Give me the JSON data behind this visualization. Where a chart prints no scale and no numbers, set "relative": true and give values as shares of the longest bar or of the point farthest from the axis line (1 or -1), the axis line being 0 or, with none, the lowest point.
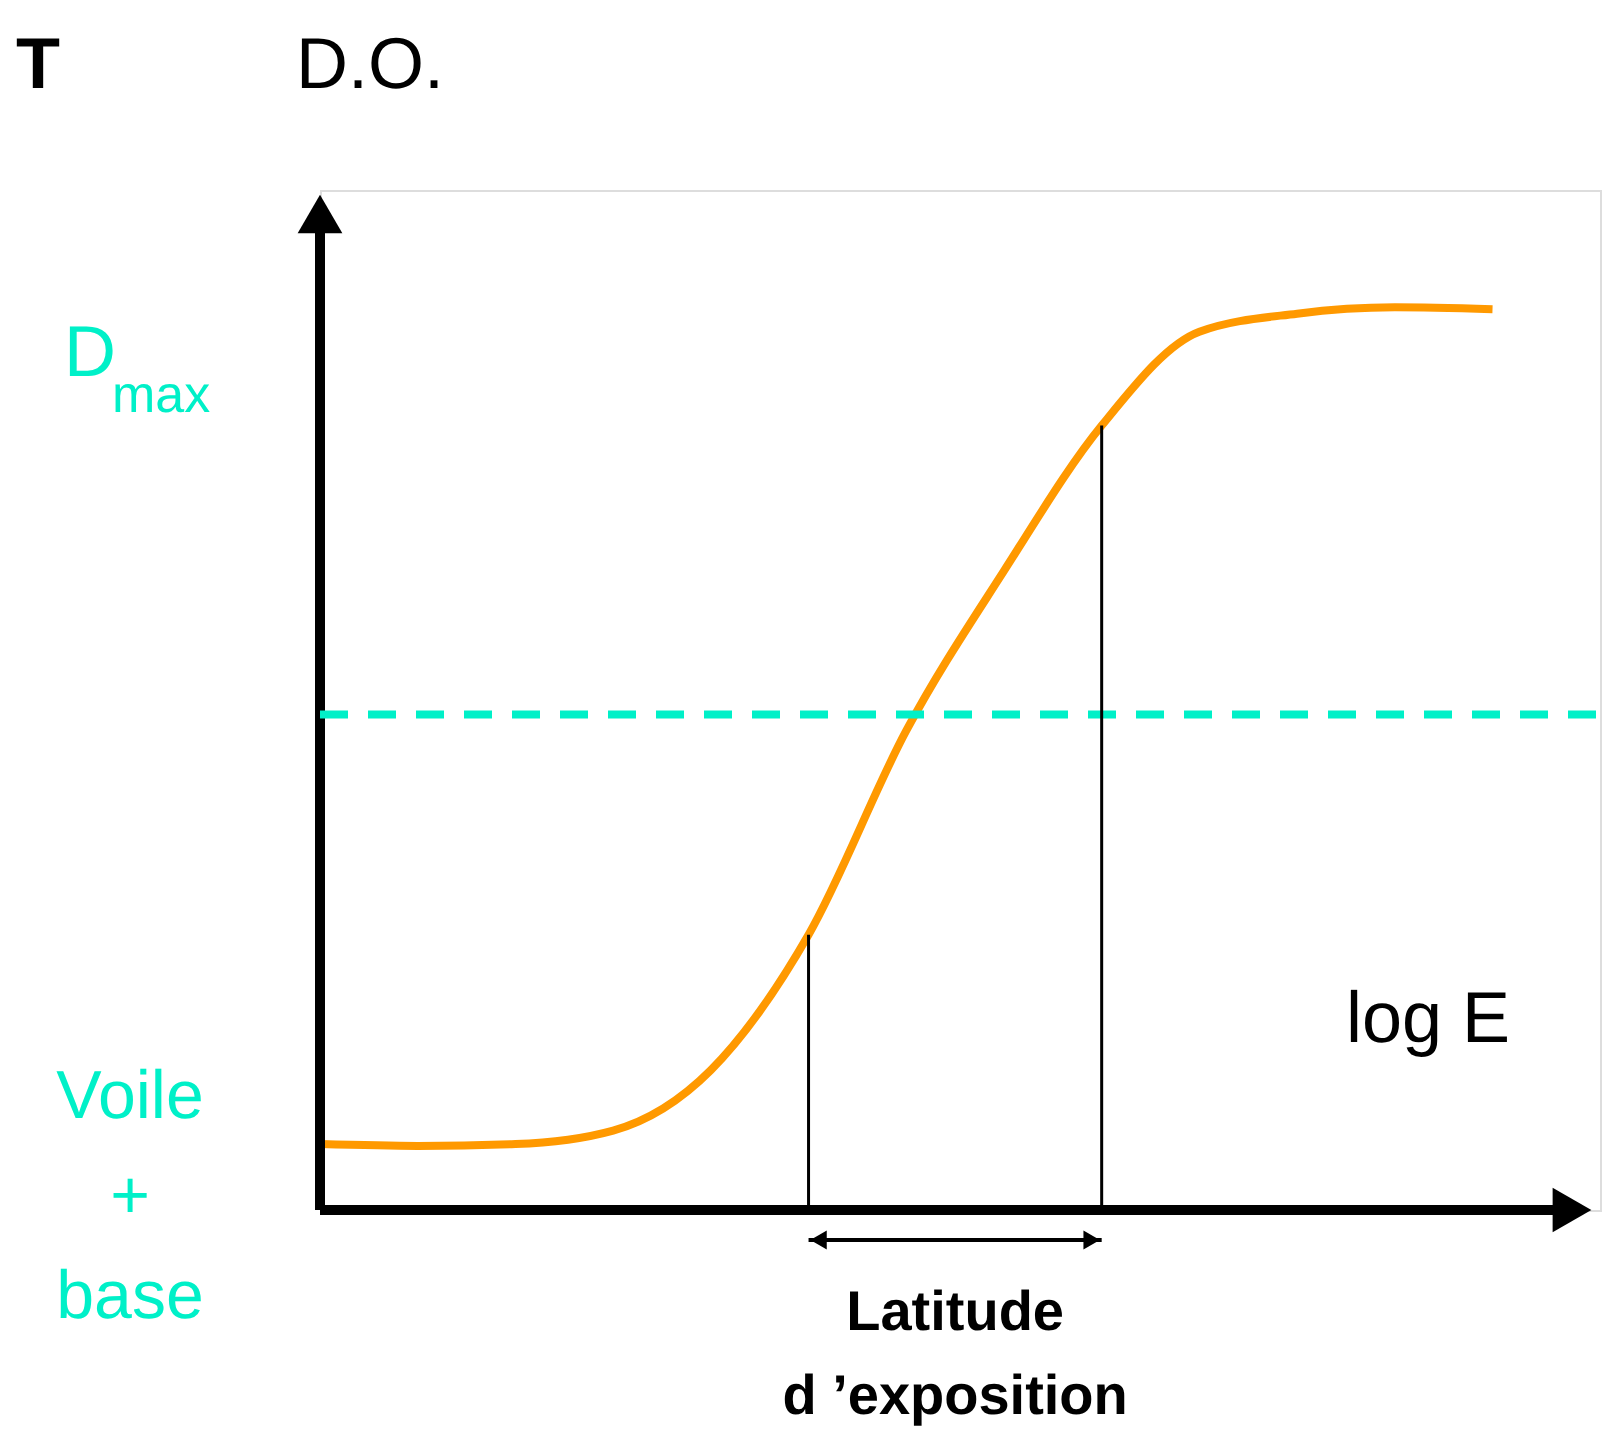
{
  "chart_data": {
    "type": "line",
    "title": "T",
    "xlabel": "log E",
    "ylabel": "D.O.",
    "relative": true,
    "categories": [
      null,
      null,
      null,
      null,
      null,
      null,
      null,
      null,
      null,
      null,
      null,
      null,
      null
    ],
    "values": [
      0.073,
      0.071,
      0.073,
      0.088,
      0.155,
      0.305,
      0.531,
      0.708,
      0.869,
      0.973,
      0.993,
      1.0,
      0.998
    ],
    "color": "#ff9900",
    "line_style": "solid",
    "ref_lines": [
      {
        "axis": "y",
        "value": 0.549,
        "color": "#00f0c8",
        "line_style": "dashed"
      }
    ],
    "annotations": [
      "D$_{max}$",
      "Voile\n+\nbase",
      "Latitude\nd ’exposition"
    ]
  }
}
